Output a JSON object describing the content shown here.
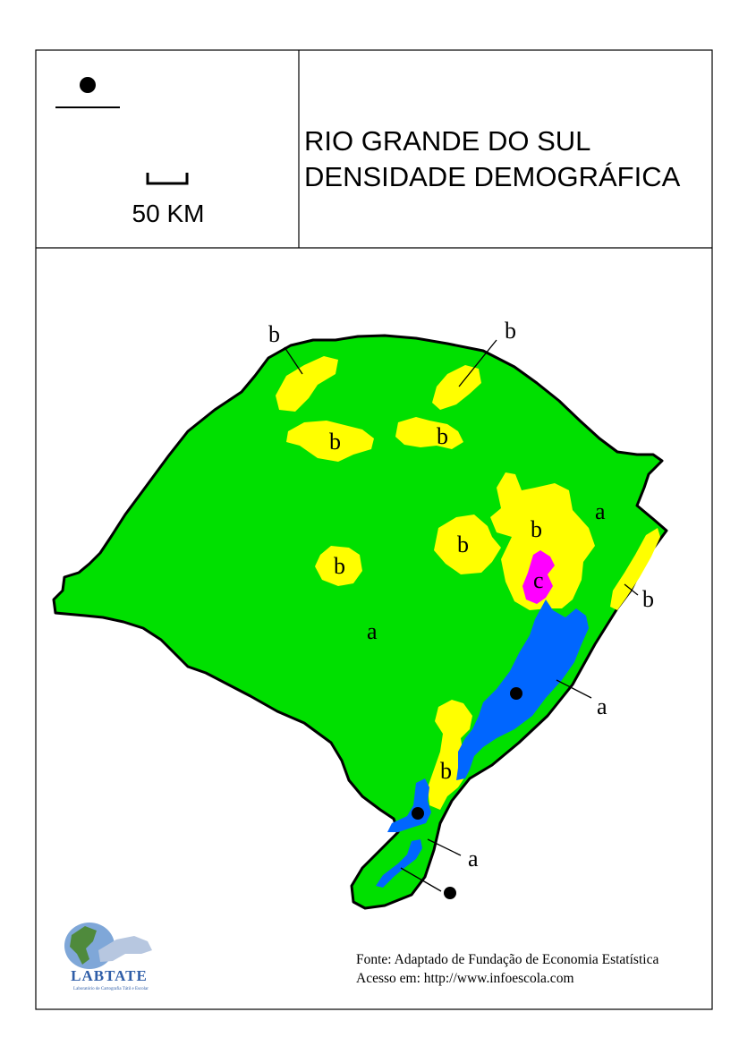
{
  "header": {
    "title_line1": "RIO GRANDE DO SUL",
    "title_line2": "DENSIDADE DEMOGRÁFICA",
    "scale_label": "50 KM"
  },
  "map_labels": {
    "a": "a",
    "b": "b",
    "c": "c"
  },
  "footer": {
    "source": "Fonte: Adaptado de Fundação de Economia Estatística",
    "access": "Acesso em: http://www.infoescola.com",
    "logo_text": "LABTATE",
    "logo_subtitle": "Laboratório de Cartografia Tátil e Escolar"
  },
  "colors": {
    "density_a": "#00e000",
    "density_b": "#ffff00",
    "density_c": "#ff00ff",
    "water": "#0066ff",
    "outline": "#000000",
    "logo_blue": "#2f5ea8"
  }
}
